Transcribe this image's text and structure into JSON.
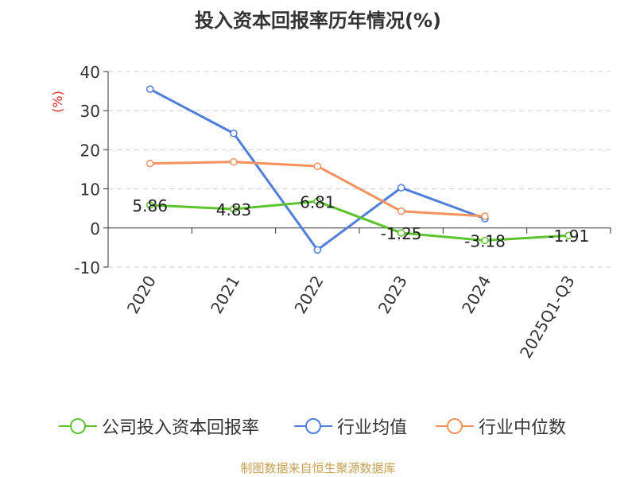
{
  "chart_data": {
    "type": "line",
    "title": "投入资本回报率历年情况(%)",
    "ylabel": "(%)",
    "categories": [
      "2020",
      "2021",
      "2022",
      "2023",
      "2024",
      "2025Q1-Q3"
    ],
    "ylim": [
      -10,
      40
    ],
    "yticks": [
      -10,
      0,
      10,
      20,
      30,
      40
    ],
    "grid": true,
    "legend_position": "bottom",
    "series": [
      {
        "name": "公司投入资本回报率",
        "color": "#5cc42e",
        "values": [
          5.86,
          4.83,
          6.81,
          -1.25,
          -3.18,
          -1.91
        ],
        "labels": [
          "5.86",
          "4.83",
          "6.81",
          "-1.25",
          "-3.18",
          "-1.91"
        ]
      },
      {
        "name": "行业均值",
        "color": "#4f7fdc",
        "values": [
          35.5,
          24.2,
          -5.6,
          10.3,
          2.4,
          null
        ]
      },
      {
        "name": "行业中位数",
        "color": "#f5915c",
        "values": [
          16.5,
          16.9,
          15.8,
          4.3,
          3.0,
          null
        ]
      }
    ]
  },
  "footer": "制图数据来自恒生聚源数据库"
}
